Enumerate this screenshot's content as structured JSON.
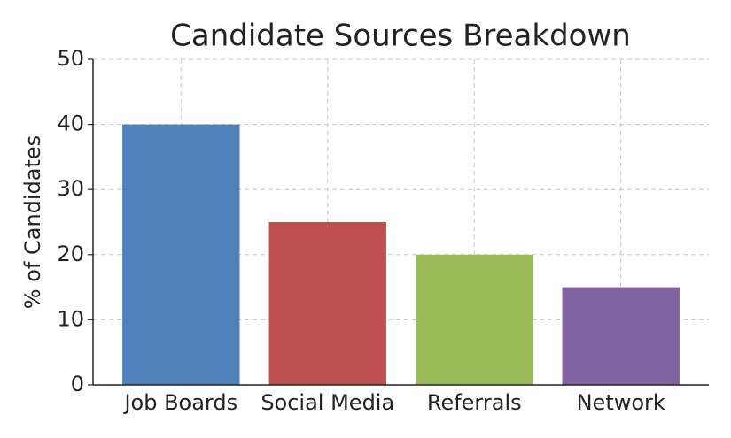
{
  "chart_data": {
    "type": "bar",
    "title": "Candidate Sources Breakdown",
    "y_label": "% of Candidates",
    "categories": [
      "Job Boards",
      "Social Media",
      "Referrals",
      "Network"
    ],
    "values": [
      40,
      25,
      20,
      15
    ],
    "colors": [
      "#4f81bd",
      "#c0504d",
      "#9bbb59",
      "#8064a2"
    ],
    "ylim": [
      0,
      50
    ],
    "yticks": [
      0,
      10,
      20,
      30,
      40,
      50
    ],
    "grid": true
  }
}
